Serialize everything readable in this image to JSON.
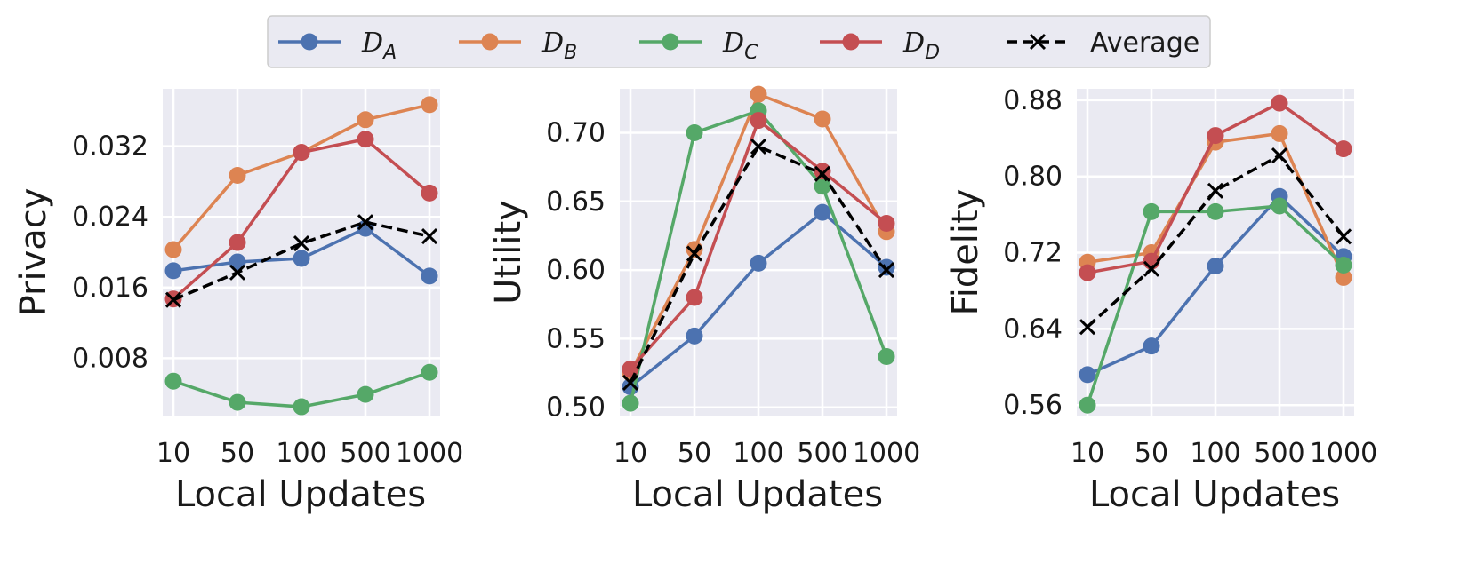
{
  "legend": {
    "position": "top-center",
    "entries": [
      {
        "key": "DA",
        "letter": "D",
        "sub": "A",
        "color": "#4c72b0",
        "marker": "circle",
        "style": "solid"
      },
      {
        "key": "DB",
        "letter": "D",
        "sub": "B",
        "color": "#dd8452",
        "marker": "circle",
        "style": "solid"
      },
      {
        "key": "DC",
        "letter": "D",
        "sub": "C",
        "color": "#55a868",
        "marker": "circle",
        "style": "solid"
      },
      {
        "key": "DD",
        "letter": "D",
        "sub": "D",
        "color": "#c44e52",
        "marker": "circle",
        "style": "solid"
      },
      {
        "key": "avg",
        "label": "Average",
        "color": "#000000",
        "marker": "x",
        "style": "dashed"
      }
    ]
  },
  "chart_data": [
    {
      "type": "line",
      "xlabel": "Local Updates",
      "ylabel": "Privacy",
      "categories": [
        "10",
        "50",
        "100",
        "500",
        "1000"
      ],
      "ylim": [
        0.0015,
        0.0385
      ],
      "yticks": [
        0.008,
        0.016,
        0.024,
        0.032
      ],
      "ytick_labels": [
        "0.008",
        "0.016",
        "0.024",
        "0.032"
      ],
      "grid": true,
      "series": [
        {
          "name": "DA",
          "values": [
            0.0179,
            0.0189,
            0.0193,
            0.0227,
            0.0173
          ]
        },
        {
          "name": "DB",
          "values": [
            0.0203,
            0.0287,
            0.0313,
            0.035,
            0.0367
          ]
        },
        {
          "name": "DC",
          "values": [
            0.0054,
            0.003,
            0.0025,
            0.0039,
            0.0064
          ]
        },
        {
          "name": "DD",
          "values": [
            0.0147,
            0.0211,
            0.0313,
            0.0328,
            0.0267
          ]
        },
        {
          "name": "avg",
          "values": [
            0.0146,
            0.0177,
            0.021,
            0.0234,
            0.0218
          ]
        }
      ]
    },
    {
      "type": "line",
      "xlabel": "Local Updates",
      "ylabel": "Utility",
      "categories": [
        "10",
        "50",
        "100",
        "500",
        "1000"
      ],
      "ylim": [
        0.494,
        0.732
      ],
      "yticks": [
        0.5,
        0.55,
        0.6,
        0.65,
        0.7
      ],
      "ytick_labels": [
        "0.50",
        "0.55",
        "0.60",
        "0.65",
        "0.70"
      ],
      "grid": true,
      "series": [
        {
          "name": "DA",
          "values": [
            0.515,
            0.552,
            0.605,
            0.642,
            0.602
          ]
        },
        {
          "name": "DB",
          "values": [
            0.525,
            0.615,
            0.728,
            0.71,
            0.628
          ]
        },
        {
          "name": "DC",
          "values": [
            0.503,
            0.7,
            0.716,
            0.661,
            0.537
          ]
        },
        {
          "name": "DD",
          "values": [
            0.528,
            0.58,
            0.709,
            0.672,
            0.634
          ]
        },
        {
          "name": "avg",
          "values": [
            0.518,
            0.612,
            0.69,
            0.67,
            0.6
          ]
        }
      ]
    },
    {
      "type": "line",
      "xlabel": "Local Updates",
      "ylabel": "Fidelity",
      "categories": [
        "10",
        "50",
        "100",
        "500",
        "1000"
      ],
      "ylim": [
        0.549,
        0.892
      ],
      "yticks": [
        0.56,
        0.64,
        0.72,
        0.8,
        0.88
      ],
      "ytick_labels": [
        "0.56",
        "0.64",
        "0.72",
        "0.80",
        "0.88"
      ],
      "grid": true,
      "series": [
        {
          "name": "DA",
          "values": [
            0.592,
            0.622,
            0.706,
            0.779,
            0.716
          ]
        },
        {
          "name": "DB",
          "values": [
            0.71,
            0.72,
            0.836,
            0.845,
            0.694
          ]
        },
        {
          "name": "DC",
          "values": [
            0.56,
            0.763,
            0.763,
            0.769,
            0.707
          ]
        },
        {
          "name": "DD",
          "values": [
            0.699,
            0.711,
            0.843,
            0.877,
            0.829
          ]
        },
        {
          "name": "avg",
          "values": [
            0.642,
            0.703,
            0.785,
            0.822,
            0.737
          ]
        }
      ]
    }
  ]
}
